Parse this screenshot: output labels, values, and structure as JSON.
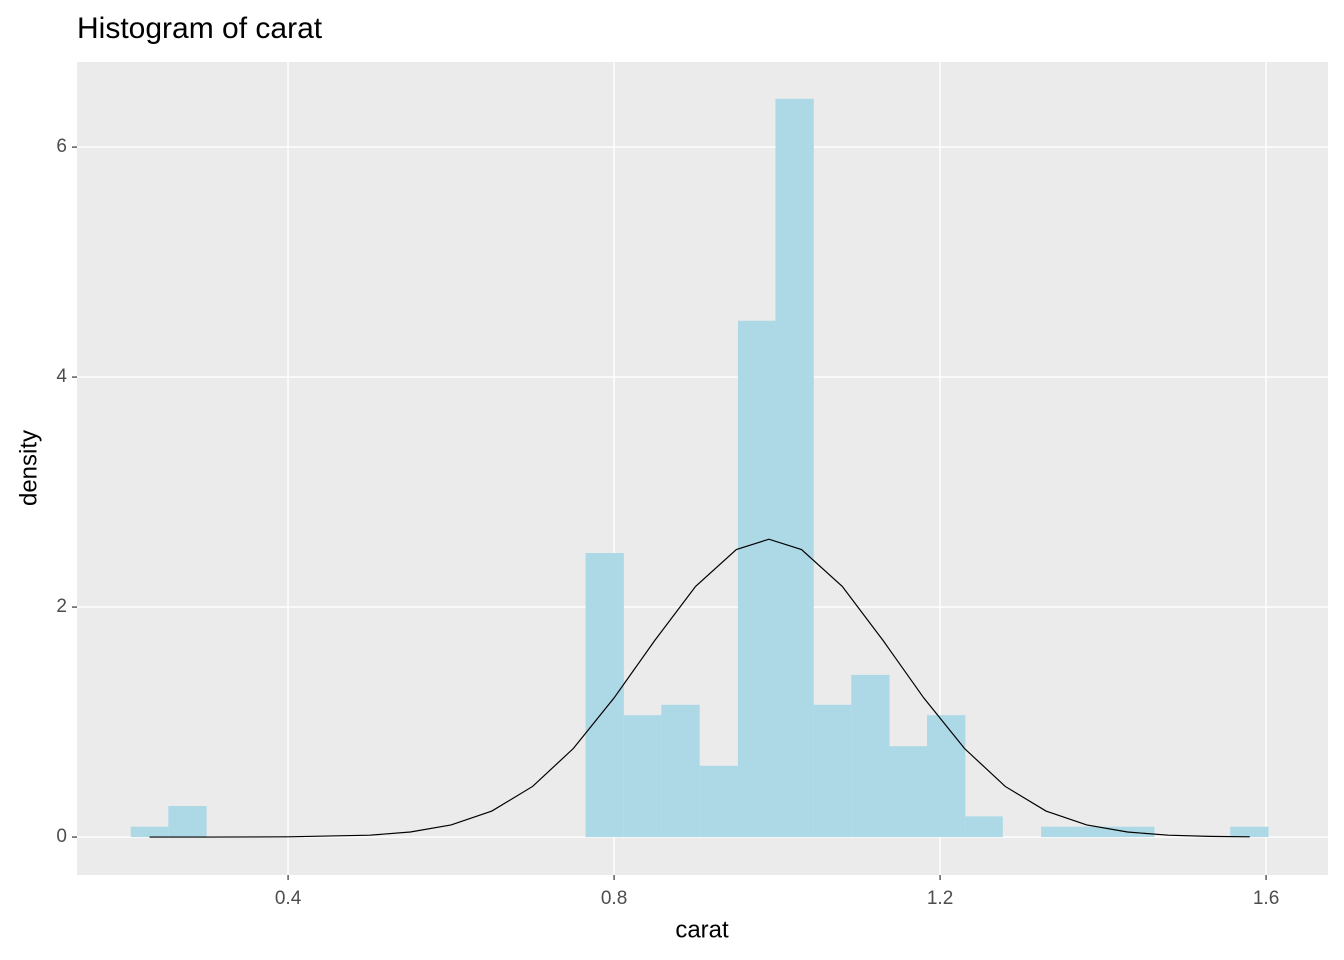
{
  "chart_data": {
    "type": "histogram",
    "title": "Histogram of carat",
    "x_label": "carat",
    "y_label": "density",
    "bins": [
      0.207,
      0.253,
      0.3,
      0.347,
      0.393,
      0.44,
      0.486,
      0.533,
      0.579,
      0.626,
      0.672,
      0.719,
      0.765,
      0.812,
      0.858,
      0.905,
      0.952,
      0.998,
      1.045,
      1.091,
      1.138,
      1.184,
      1.231,
      1.277,
      1.324,
      1.37,
      1.417,
      1.463,
      1.51,
      1.556,
      1.603
    ],
    "values": [
      0.09,
      0.27,
      0,
      0,
      0,
      0,
      0,
      0,
      0,
      0,
      0,
      0,
      2.47,
      1.06,
      1.15,
      0.62,
      4.49,
      6.42,
      1.15,
      1.41,
      0.79,
      1.06,
      0.18,
      0,
      0.09,
      0.09,
      0.09,
      0,
      0,
      0.09
    ],
    "color": "#add8e6",
    "curve": {
      "color": "#000000",
      "x": [
        0.23,
        0.3,
        0.4,
        0.5,
        0.55,
        0.6,
        0.65,
        0.7,
        0.75,
        0.8,
        0.85,
        0.9,
        0.95,
        0.99,
        1.03,
        1.08,
        1.13,
        1.18,
        1.23,
        1.28,
        1.33,
        1.38,
        1.43,
        1.48,
        1.53,
        1.58
      ],
      "values": [
        0,
        0,
        0.002,
        0.016,
        0.044,
        0.105,
        0.226,
        0.44,
        0.77,
        1.21,
        1.71,
        2.18,
        2.5,
        2.59,
        2.5,
        2.18,
        1.71,
        1.21,
        0.77,
        0.44,
        0.226,
        0.105,
        0.044,
        0.016,
        0.006,
        0.002
      ]
    },
    "xlim": [
      0.141,
      1.676
    ],
    "ylim": [
      -0.33,
      6.74
    ],
    "xticks": [
      0.4,
      0.8,
      1.2,
      1.6
    ],
    "yticks": [
      0,
      2,
      4,
      6
    ],
    "grid": true
  }
}
